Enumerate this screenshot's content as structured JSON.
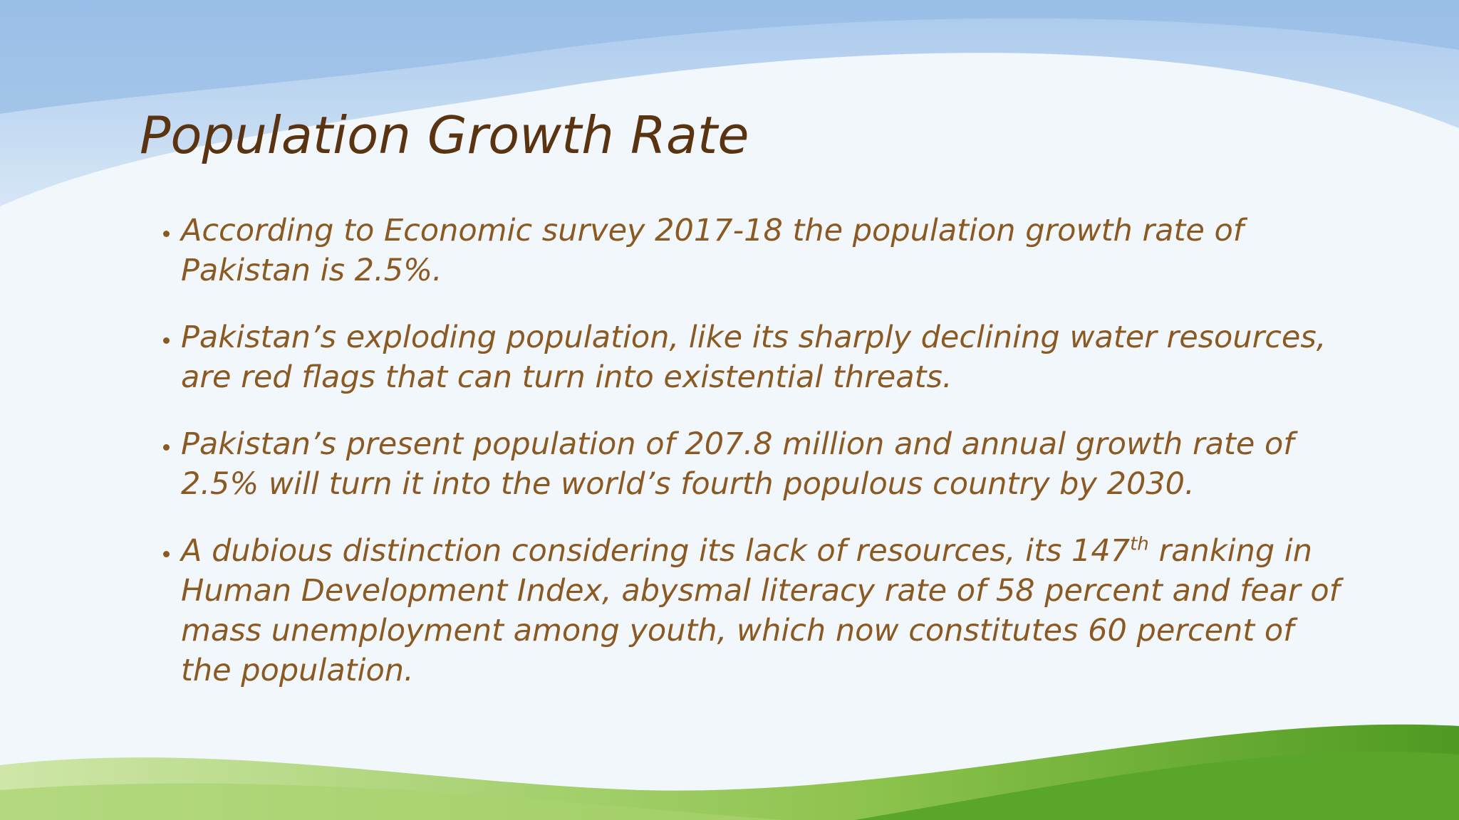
{
  "slide": {
    "title": "Population Growth Rate",
    "bullets": [
      {
        "text": "According to Economic survey 2017-18 the population growth rate of Pakistan is 2.5%."
      },
      {
        "text": "Pakistan’s exploding population, like its sharply declining water resources, are red flags that can turn into existential threats."
      },
      {
        "text": "Pakistan’s present population of 207.8 million and annual growth rate of 2.5% will turn it into the world’s fourth populous country by 2030."
      },
      {
        "text": "A dubious distinction considering its lack of resources, its 147",
        "superscript": "th",
        "after": " ranking in Human Development Index, abysmal literacy rate of 58 percent and fear of mass unemployment among youth, which now constitutes 60 percent of the population."
      }
    ]
  }
}
